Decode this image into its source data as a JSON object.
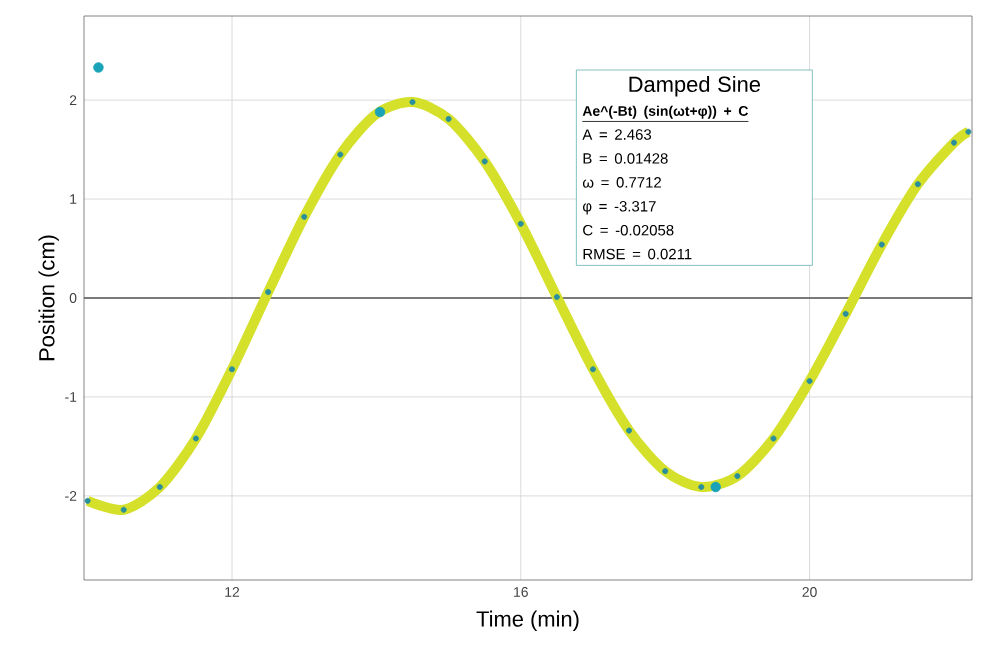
{
  "chart_data": {
    "type": "scatter",
    "xlabel": "Time (min)",
    "ylabel": "Position (cm)",
    "xlim": [
      9.95,
      22.25
    ],
    "ylim": [
      -2.85,
      2.85
    ],
    "xticks": [
      12,
      16,
      20
    ],
    "yticks": [
      -2,
      -1,
      0,
      1,
      2
    ],
    "grid": true,
    "series": [
      {
        "type": "line",
        "color": "#d4e02a",
        "x": [
          10,
          10.5,
          11,
          11.5,
          12,
          12.5,
          13,
          13.5,
          14,
          14.5,
          15,
          15.5,
          16,
          16.5,
          17,
          17.5,
          18,
          18.5,
          19,
          19.5,
          20,
          20.5,
          21,
          21.5,
          22,
          22.2
        ],
        "values": [
          -2.05,
          -2.14,
          -1.91,
          -1.42,
          -0.72,
          0.06,
          0.82,
          1.45,
          1.86,
          1.98,
          1.81,
          1.38,
          0.75,
          0.01,
          -0.72,
          -1.34,
          -1.75,
          -1.91,
          -1.8,
          -1.42,
          -0.84,
          -0.16,
          0.54,
          1.15,
          1.57,
          1.68
        ]
      },
      {
        "marker": "circle",
        "color": "#2a8f9c",
        "x": [
          10,
          10.5,
          11,
          11.5,
          12,
          12.5,
          13,
          13.5,
          14,
          14.5,
          15,
          15.5,
          16,
          16.5,
          17,
          17.5,
          18,
          18.5,
          19,
          19.5,
          20,
          20.5,
          21,
          21.5,
          22,
          22.2
        ],
        "values": [
          -2.05,
          -2.14,
          -1.91,
          -1.42,
          -0.72,
          0.06,
          0.82,
          1.45,
          null,
          1.98,
          1.81,
          1.38,
          0.75,
          0.01,
          -0.72,
          -1.34,
          -1.75,
          -1.91,
          -1.8,
          -1.42,
          -0.84,
          -0.16,
          0.54,
          1.15,
          1.57,
          1.68
        ]
      },
      {
        "marker": "circle",
        "color": "#1aa3b8",
        "x": [
          10.15,
          14.05,
          18.7
        ],
        "values": [
          2.33,
          1.88,
          -1.91
        ]
      }
    ],
    "ref_lines": [
      {
        "axis": "y",
        "value": 0,
        "color": "#555555"
      }
    ],
    "annotations": [
      "Damped Sine",
      "Ae^(-Bt) (sin(ωt+φ)) + C",
      "A = 2.463",
      "B = 0.01428",
      "ω = 0.7712",
      "φ = -3.317",
      "C = -0.02058",
      "RMSE = 0.0211"
    ]
  }
}
